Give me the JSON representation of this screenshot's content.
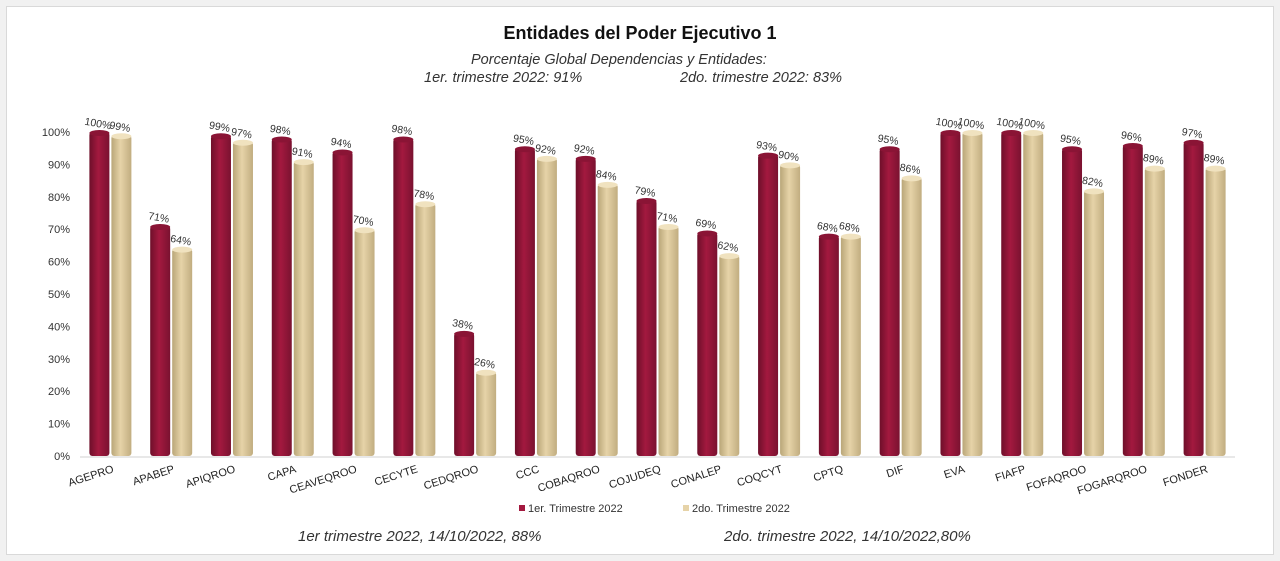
{
  "chart_data": {
    "type": "bar",
    "title": "Entidades del Poder Ejecutivo 1",
    "subtitle_line1": "Porcentaje Global  Dependencias y Entidades:",
    "subtitle_q1": "1er. trimestre 2022: 91%",
    "subtitle_q2": "2do. trimestre 2022: 83%",
    "footnote_q1": "1er trimestre  2022,  14/10/2022,  88%",
    "footnote_q2": "2do. trimestre 2022, 14/10/2022,80%",
    "categories": [
      "AGEPRO",
      "APABEP",
      "APIQROO",
      "CAPA",
      "CEAVEQROO",
      "CECYTE",
      "CEDQROO",
      "CCC",
      "COBAQROO",
      "COJUDEQ",
      "CONALEP",
      "COQCYT",
      "CPTQ",
      "DIF",
      "EVA",
      "FIAFP",
      "FOFAQROO",
      "FOGARQROO",
      "FONDER"
    ],
    "series": [
      {
        "name": "1er. Trimestre 2022",
        "color": "#a3193f",
        "values": [
          100,
          71,
          99,
          98,
          94,
          98,
          38,
          95,
          92,
          79,
          69,
          93,
          68,
          95,
          100,
          100,
          95,
          96,
          97
        ]
      },
      {
        "name": "2do. Trimestre 2022",
        "color": "#e6d3a8",
        "values": [
          99,
          64,
          97,
          91,
          70,
          78,
          26,
          92,
          84,
          71,
          62,
          90,
          68,
          86,
          100,
          100,
          82,
          89,
          89
        ]
      }
    ],
    "ylim": [
      0,
      100
    ],
    "yticks": [
      "0%",
      "10%",
      "20%",
      "30%",
      "40%",
      "50%",
      "60%",
      "70%",
      "80%",
      "90%",
      "100%"
    ],
    "data_labels": [
      [
        "100%",
        "71%",
        "99%",
        "98%",
        "94%",
        "98%",
        "38%",
        "95%",
        "92%",
        "79%",
        "69%",
        "93%",
        "68%",
        "95%",
        "100%",
        "100%",
        "95%",
        "96%",
        "97%"
      ],
      [
        "99%",
        "64%",
        "97%",
        "91%",
        "70%",
        "78%",
        "26%",
        "92%",
        "84%",
        "71%",
        "62%",
        "90%",
        "68%",
        "86%",
        "100%",
        "100%",
        "82%",
        "89%",
        "89%"
      ]
    ],
    "grid": false,
    "legend_position": "bottom"
  }
}
